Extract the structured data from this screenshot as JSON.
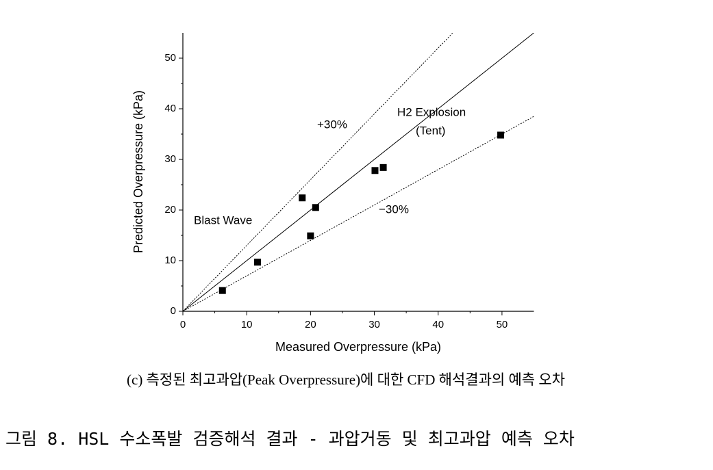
{
  "chart_data": {
    "type": "scatter",
    "x_label": "Measured Overpressure (kPa)",
    "y_label": "Predicted Overpressure (kPa)",
    "x": [
      6.2,
      11.7,
      18.7,
      20.0,
      20.8,
      30.1,
      31.4,
      49.8
    ],
    "values": [
      4.1,
      9.7,
      22.4,
      14.9,
      20.5,
      27.8,
      28.4,
      34.8
    ],
    "color": "#000000",
    "reference_lines": [
      {
        "slope": 1,
        "style": "solid"
      },
      {
        "slope": 1.3,
        "style": "dotted"
      },
      {
        "slope": 0.7,
        "style": "dotted"
      }
    ],
    "annotations": [
      "+30%",
      "H2 Explosion",
      "(Tent)",
      "−30%",
      "Blast Wave"
    ],
    "xlim": [
      0,
      55
    ],
    "ylim": [
      0,
      55
    ],
    "xticks": [
      0,
      10,
      20,
      30,
      40,
      50
    ],
    "yticks": [
      0,
      10,
      20,
      30,
      40,
      50
    ],
    "grid": false
  },
  "captions": {
    "sub": "(c) 측정된 최고과압(Peak Overpressure)에 대한 CFD 해석결과의 예측 오차",
    "figure": "그림 8. HSL 수소폭발 검증해석 결과 - 과압거동 및 최고과압 예측 오차"
  }
}
